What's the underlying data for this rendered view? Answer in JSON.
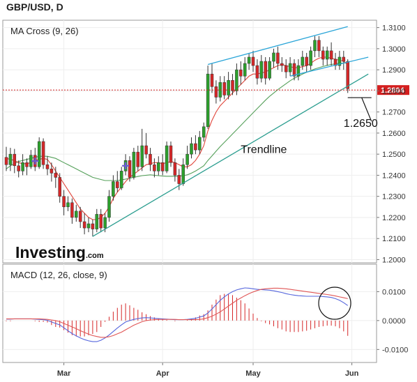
{
  "title": "GBP/USD, D",
  "brand": {
    "name": "Investing",
    "suffix": ".com"
  },
  "current_price": {
    "label": "1.2804",
    "value": 1.2804,
    "color": "#d41f1f"
  },
  "chart_data": [
    {
      "type": "candlestick",
      "panel": "price",
      "label": "MA Cross (9, 26)",
      "ylim": [
        1.1985,
        1.3135
      ],
      "yticks": [
        "1.3100",
        "1.3000",
        "1.2900",
        "1.2800",
        "1.2700",
        "1.2600",
        "1.2500",
        "1.2400",
        "1.2300",
        "1.2200",
        "1.2100",
        "1.2000"
      ],
      "ytick_values": [
        1.31,
        1.3,
        1.29,
        1.28,
        1.27,
        1.26,
        1.25,
        1.24,
        1.23,
        1.22,
        1.21,
        1.2
      ],
      "xticks": [
        "Mar",
        "Apr",
        "May",
        "Jun"
      ],
      "colors": {
        "up": "#2ca02c",
        "down": "#d62728",
        "ma_fast": "#e0453a",
        "ma_slow": "#55a05a",
        "trendline": "#2a9d8f",
        "channel": "#2aa5d8"
      },
      "candles": [
        [
          1.2485,
          1.245,
          1.2535,
          1.242
        ],
        [
          1.245,
          1.25,
          1.253,
          1.242
        ],
        [
          1.25,
          1.2445,
          1.2525,
          1.241
        ],
        [
          1.2445,
          1.242,
          1.247,
          1.239
        ],
        [
          1.242,
          1.246,
          1.25,
          1.24
        ],
        [
          1.246,
          1.244,
          1.248,
          1.24
        ],
        [
          1.244,
          1.2495,
          1.252,
          1.243
        ],
        [
          1.2495,
          1.244,
          1.253,
          1.242
        ],
        [
          1.244,
          1.256,
          1.258,
          1.243
        ],
        [
          1.256,
          1.245,
          1.2575,
          1.243
        ],
        [
          1.245,
          1.243,
          1.249,
          1.24
        ],
        [
          1.243,
          1.241,
          1.246,
          1.237
        ],
        [
          1.241,
          1.239,
          1.244,
          1.234
        ],
        [
          1.239,
          1.23,
          1.241,
          1.227
        ],
        [
          1.23,
          1.225,
          1.233,
          1.221
        ],
        [
          1.225,
          1.227,
          1.23,
          1.223
        ],
        [
          1.227,
          1.22,
          1.229,
          1.217
        ],
        [
          1.22,
          1.223,
          1.226,
          1.218
        ],
        [
          1.223,
          1.218,
          1.225,
          1.215
        ],
        [
          1.218,
          1.215,
          1.222,
          1.212
        ],
        [
          1.215,
          1.217,
          1.22,
          1.213
        ],
        [
          1.217,
          1.2145,
          1.219,
          1.211
        ],
        [
          1.2145,
          1.2215,
          1.224,
          1.213
        ],
        [
          1.2215,
          1.215,
          1.224,
          1.213
        ],
        [
          1.215,
          1.22,
          1.222,
          1.213
        ],
        [
          1.22,
          1.23,
          1.233,
          1.218
        ],
        [
          1.23,
          1.237,
          1.24,
          1.228
        ],
        [
          1.237,
          1.234,
          1.242,
          1.232
        ],
        [
          1.234,
          1.242,
          1.244,
          1.233
        ],
        [
          1.242,
          1.247,
          1.25,
          1.24
        ],
        [
          1.247,
          1.239,
          1.249,
          1.237
        ],
        [
          1.239,
          1.251,
          1.253,
          1.238
        ],
        [
          1.251,
          1.244,
          1.254,
          1.242
        ],
        [
          1.244,
          1.254,
          1.262,
          1.242
        ],
        [
          1.254,
          1.25,
          1.26,
          1.248
        ],
        [
          1.25,
          1.245,
          1.253,
          1.242
        ],
        [
          1.245,
          1.242,
          1.248,
          1.239
        ],
        [
          1.242,
          1.246,
          1.249,
          1.24
        ],
        [
          1.246,
          1.242,
          1.25,
          1.24
        ],
        [
          1.242,
          1.254,
          1.256,
          1.241
        ],
        [
          1.254,
          1.246,
          1.256,
          1.244
        ],
        [
          1.246,
          1.24,
          1.248,
          1.237
        ],
        [
          1.24,
          1.236,
          1.243,
          1.233
        ],
        [
          1.236,
          1.245,
          1.248,
          1.235
        ],
        [
          1.245,
          1.25,
          1.254,
          1.243
        ],
        [
          1.25,
          1.255,
          1.258,
          1.248
        ],
        [
          1.255,
          1.252,
          1.259,
          1.25
        ],
        [
          1.252,
          1.258,
          1.261,
          1.25
        ],
        [
          1.258,
          1.263,
          1.265,
          1.256
        ],
        [
          1.263,
          1.288,
          1.292,
          1.262
        ],
        [
          1.288,
          1.282,
          1.293,
          1.279
        ],
        [
          1.282,
          1.277,
          1.285,
          1.274
        ],
        [
          1.277,
          1.284,
          1.287,
          1.275
        ],
        [
          1.284,
          1.278,
          1.287,
          1.276
        ],
        [
          1.278,
          1.285,
          1.289,
          1.276
        ],
        [
          1.285,
          1.28,
          1.288,
          1.278
        ],
        [
          1.28,
          1.29,
          1.293,
          1.278
        ],
        [
          1.29,
          1.287,
          1.294,
          1.283
        ],
        [
          1.287,
          1.293,
          1.296,
          1.285
        ],
        [
          1.293,
          1.296,
          1.298,
          1.29
        ],
        [
          1.296,
          1.292,
          1.299,
          1.289
        ],
        [
          1.292,
          1.286,
          1.295,
          1.283
        ],
        [
          1.286,
          1.294,
          1.297,
          1.284
        ],
        [
          1.294,
          1.286,
          1.296,
          1.283
        ],
        [
          1.286,
          1.294,
          1.296,
          1.285
        ],
        [
          1.294,
          1.298,
          1.3,
          1.291
        ],
        [
          1.298,
          1.293,
          1.301,
          1.29
        ],
        [
          1.293,
          1.292,
          1.296,
          1.289
        ],
        [
          1.292,
          1.289,
          1.295,
          1.286
        ],
        [
          1.289,
          1.293,
          1.296,
          1.287
        ],
        [
          1.293,
          1.287,
          1.295,
          1.285
        ],
        [
          1.287,
          1.292,
          1.295,
          1.285
        ],
        [
          1.292,
          1.296,
          1.299,
          1.29
        ],
        [
          1.296,
          1.292,
          1.298,
          1.289
        ],
        [
          1.292,
          1.299,
          1.301,
          1.29
        ],
        [
          1.299,
          1.304,
          1.306,
          1.296
        ],
        [
          1.304,
          1.299,
          1.306,
          1.296
        ],
        [
          1.299,
          1.295,
          1.301,
          1.292
        ],
        [
          1.295,
          1.299,
          1.301,
          1.292
        ],
        [
          1.299,
          1.295,
          1.303,
          1.292
        ],
        [
          1.295,
          1.292,
          1.298,
          1.29
        ],
        [
          1.292,
          1.296,
          1.299,
          1.29
        ],
        [
          1.296,
          1.294,
          1.299,
          1.29
        ],
        [
          1.294,
          1.281,
          1.295,
          1.279
        ]
      ],
      "ma_fast": [
        1.248,
        1.2475,
        1.247,
        1.246,
        1.2455,
        1.2455,
        1.246,
        1.247,
        1.2475,
        1.248,
        1.2475,
        1.245,
        1.242,
        1.239,
        1.236,
        1.233,
        1.23,
        1.227,
        1.224,
        1.222,
        1.22,
        1.219,
        1.219,
        1.22,
        1.222,
        1.225,
        1.229,
        1.232,
        1.2345,
        1.237,
        1.239,
        1.2405,
        1.242,
        1.2435,
        1.245,
        1.2455,
        1.246,
        1.246,
        1.2455,
        1.246,
        1.2465,
        1.246,
        1.245,
        1.244,
        1.244,
        1.245,
        1.247,
        1.25,
        1.254,
        1.261,
        1.266,
        1.27,
        1.273,
        1.275,
        1.277,
        1.279,
        1.281,
        1.283,
        1.285,
        1.287,
        1.288,
        1.288,
        1.2885,
        1.289,
        1.29,
        1.291,
        1.292,
        1.2925,
        1.292,
        1.2915,
        1.291,
        1.291,
        1.2915,
        1.292,
        1.293,
        1.2945,
        1.2955,
        1.296,
        1.296,
        1.2955,
        1.295,
        1.2945,
        1.294,
        1.2925
      ],
      "ma_slow": [
        1.243,
        1.2445,
        1.2455,
        1.2465,
        1.247,
        1.2475,
        1.248,
        1.2485,
        1.249,
        1.249,
        1.249,
        1.2485,
        1.248,
        1.247,
        1.246,
        1.245,
        1.244,
        1.243,
        1.242,
        1.241,
        1.24,
        1.239,
        1.2385,
        1.238,
        1.2375,
        1.2375,
        1.2375,
        1.2375,
        1.2378,
        1.2382,
        1.2386,
        1.239,
        1.2394,
        1.2398,
        1.24,
        1.2402,
        1.24,
        1.2398,
        1.2396,
        1.2395,
        1.2395,
        1.2395,
        1.2396,
        1.2398,
        1.2402,
        1.241,
        1.242,
        1.2432,
        1.2445,
        1.247,
        1.2492,
        1.2514,
        1.2536,
        1.2556,
        1.2576,
        1.2596,
        1.2616,
        1.2636,
        1.2656,
        1.2676,
        1.2696,
        1.2716,
        1.2736,
        1.2756,
        1.2774,
        1.279,
        1.2806,
        1.282,
        1.2834,
        1.2848,
        1.286,
        1.287,
        1.288,
        1.2888,
        1.2896,
        1.2904,
        1.291,
        1.2916,
        1.2921,
        1.2925,
        1.2928,
        1.2931,
        1.2932,
        1.2932
      ],
      "trendline": {
        "start": [
          21,
          1.211
        ],
        "end": [
          88,
          1.288
        ]
      },
      "channel_upper": {
        "start": [
          49,
          1.2925
        ],
        "end": [
          83,
          1.3105
        ]
      },
      "channel_lower": {
        "start": [
          69,
          1.287
        ],
        "end": [
          88,
          1.296
        ]
      },
      "marker_candles": [
        7,
        29
      ],
      "annotations": [
        {
          "text": "Trendline",
          "at": [
            57,
            1.2505
          ]
        },
        {
          "text": "1.2650",
          "at": [
            82,
            1.263
          ]
        }
      ]
    },
    {
      "type": "line",
      "panel": "macd",
      "label": "MACD (12, 26, close, 9)",
      "ylim": [
        -0.0145,
        0.0195
      ],
      "yticks": [
        "0.0100",
        "0.0000",
        "-0.0100"
      ],
      "ytick_values": [
        0.01,
        0.0,
        -0.01
      ],
      "series": [
        {
          "color": "#5566dd",
          "values": [
            0.0005,
            0.0005,
            0.0006,
            0.0006,
            0.0006,
            0.0006,
            0.0006,
            0.0005,
            0.0004,
            0.0003,
            0.0001,
            -0.0005,
            -0.001,
            -0.0015,
            -0.0025,
            -0.0035,
            -0.0045,
            -0.0053,
            -0.006,
            -0.0066,
            -0.007,
            -0.0073,
            -0.0073,
            -0.0068,
            -0.006,
            -0.005,
            -0.0038,
            -0.0026,
            -0.0015,
            -0.0005,
            0.0,
            0.0004,
            0.0007,
            0.0009,
            0.001,
            0.0009,
            0.0008,
            0.0007,
            0.0006,
            0.0005,
            0.0004,
            0.0003,
            0.0003,
            0.0003,
            0.0004,
            0.0006,
            0.0008,
            0.0012,
            0.0016,
            0.0026,
            0.004,
            0.0055,
            0.007,
            0.0082,
            0.0092,
            0.01,
            0.0106,
            0.011,
            0.0113,
            0.0112,
            0.011,
            0.0108,
            0.0107,
            0.0106,
            0.0105,
            0.0103,
            0.01,
            0.0097,
            0.0093,
            0.009,
            0.0088,
            0.0086,
            0.0085,
            0.0084,
            0.0084,
            0.0084,
            0.0084,
            0.0083,
            0.0082,
            0.008,
            0.0076,
            0.007,
            0.0062,
            0.0052
          ]
        },
        {
          "color": "#e05555",
          "values": [
            0.0006,
            0.0006,
            0.0006,
            0.0006,
            0.0006,
            0.0006,
            0.0006,
            0.0006,
            0.0006,
            0.0005,
            0.0004,
            0.0002,
            0.0,
            -0.0004,
            -0.001,
            -0.0016,
            -0.0022,
            -0.0028,
            -0.0035,
            -0.0041,
            -0.0047,
            -0.0052,
            -0.0055,
            -0.0058,
            -0.0058,
            -0.0056,
            -0.0052,
            -0.0046,
            -0.004,
            -0.0032,
            -0.0024,
            -0.0016,
            -0.001,
            -0.0004,
            0.0,
            0.0002,
            0.0003,
            0.0004,
            0.0004,
            0.0004,
            0.0004,
            0.0004,
            0.0003,
            0.0003,
            0.0003,
            0.0003,
            0.0003,
            0.0004,
            0.0006,
            0.001,
            0.0015,
            0.0022,
            0.003,
            0.004,
            0.005,
            0.006,
            0.007,
            0.0078,
            0.0086,
            0.0093,
            0.0099,
            0.0104,
            0.0108,
            0.011,
            0.0111,
            0.0112,
            0.0112,
            0.0111,
            0.011,
            0.0108,
            0.0106,
            0.0104,
            0.0102,
            0.01,
            0.0098,
            0.0096,
            0.0094,
            0.0092,
            0.009,
            0.0088,
            0.0085,
            0.0082,
            0.0079,
            0.0076
          ]
        }
      ],
      "histogram_color": "#d62728",
      "xticks": [
        "Mar",
        "Apr",
        "May",
        "Jun"
      ]
    }
  ]
}
